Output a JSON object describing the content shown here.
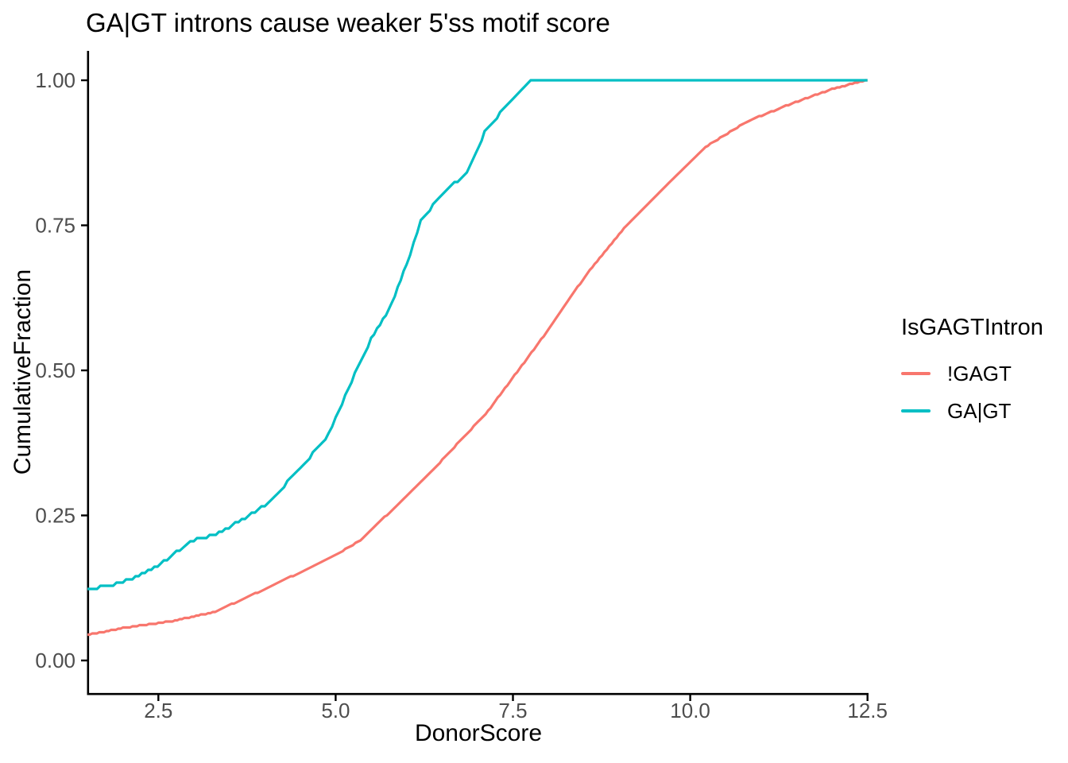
{
  "title": "GA|GT introns cause weaker 5'ss motif score",
  "axes": {
    "x": {
      "label": "DonorScore"
    },
    "y": {
      "label": "CumulativeFraction"
    }
  },
  "legend": {
    "title": "IsGAGTIntron",
    "position": "right",
    "entries": [
      {
        "label": "!GAGT",
        "color": "#F8766D"
      },
      {
        "label": "GA|GT",
        "color": "#00BFC4"
      }
    ]
  },
  "colors": {
    "axis_line": "#000000",
    "tick_label": "#4d4d4d",
    "background": "#ffffff"
  },
  "chart_data": {
    "type": "line",
    "subtype": "ecdf",
    "title": "GA|GT introns cause weaker 5'ss motif score",
    "xlabel": "DonorScore",
    "ylabel": "CumulativeFraction",
    "xlim": [
      1.5,
      12.5
    ],
    "ylim": [
      0.0,
      1.0
    ],
    "grid": false,
    "legend_position": "right",
    "x_ticks": [
      {
        "value": 2.5,
        "label": "2.5"
      },
      {
        "value": 5.0,
        "label": "5.0"
      },
      {
        "value": 7.5,
        "label": "7.5"
      },
      {
        "value": 10.0,
        "label": "10.0"
      },
      {
        "value": 12.5,
        "label": "12.5"
      }
    ],
    "y_ticks": [
      {
        "value": 0.0,
        "label": "0.00"
      },
      {
        "value": 0.25,
        "label": "0.25"
      },
      {
        "value": 0.5,
        "label": "0.50"
      },
      {
        "value": 0.75,
        "label": "0.75"
      },
      {
        "value": 1.0,
        "label": "1.00"
      }
    ],
    "series": [
      {
        "name": "!GAGT",
        "color": "#F8766D",
        "style": "smooth",
        "points": [
          [
            1.5,
            0.044
          ],
          [
            2.0,
            0.056
          ],
          [
            2.7,
            0.068
          ],
          [
            3.3,
            0.084
          ],
          [
            4.2,
            0.134
          ],
          [
            5.1,
            0.189
          ],
          [
            5.35,
            0.207
          ],
          [
            6.3,
            0.319
          ],
          [
            7.15,
            0.43
          ],
          [
            8.0,
            0.57
          ],
          [
            8.55,
            0.668
          ],
          [
            9.1,
            0.75
          ],
          [
            9.7,
            0.823
          ],
          [
            10.25,
            0.888
          ],
          [
            10.8,
            0.929
          ],
          [
            11.35,
            0.956
          ],
          [
            12.0,
            0.985
          ],
          [
            12.25,
            0.993
          ],
          [
            12.5,
            1.0
          ]
        ]
      },
      {
        "name": "GA|GT",
        "color": "#00BFC4",
        "style": "step",
        "points": [
          [
            1.5,
            0.121
          ],
          [
            2.0,
            0.135
          ],
          [
            2.4,
            0.157
          ],
          [
            2.8,
            0.19
          ],
          [
            3.0,
            0.207
          ],
          [
            3.4,
            0.222
          ],
          [
            4.0,
            0.267
          ],
          [
            4.5,
            0.33
          ],
          [
            4.9,
            0.39
          ],
          [
            5.0,
            0.417
          ],
          [
            5.27,
            0.494
          ],
          [
            5.5,
            0.554
          ],
          [
            5.75,
            0.604
          ],
          [
            6.0,
            0.682
          ],
          [
            6.2,
            0.757
          ],
          [
            6.5,
            0.805
          ],
          [
            6.85,
            0.84
          ],
          [
            7.1,
            0.91
          ],
          [
            7.45,
            0.962
          ],
          [
            7.75,
            1.0
          ],
          [
            12.5,
            1.0
          ]
        ]
      }
    ]
  }
}
